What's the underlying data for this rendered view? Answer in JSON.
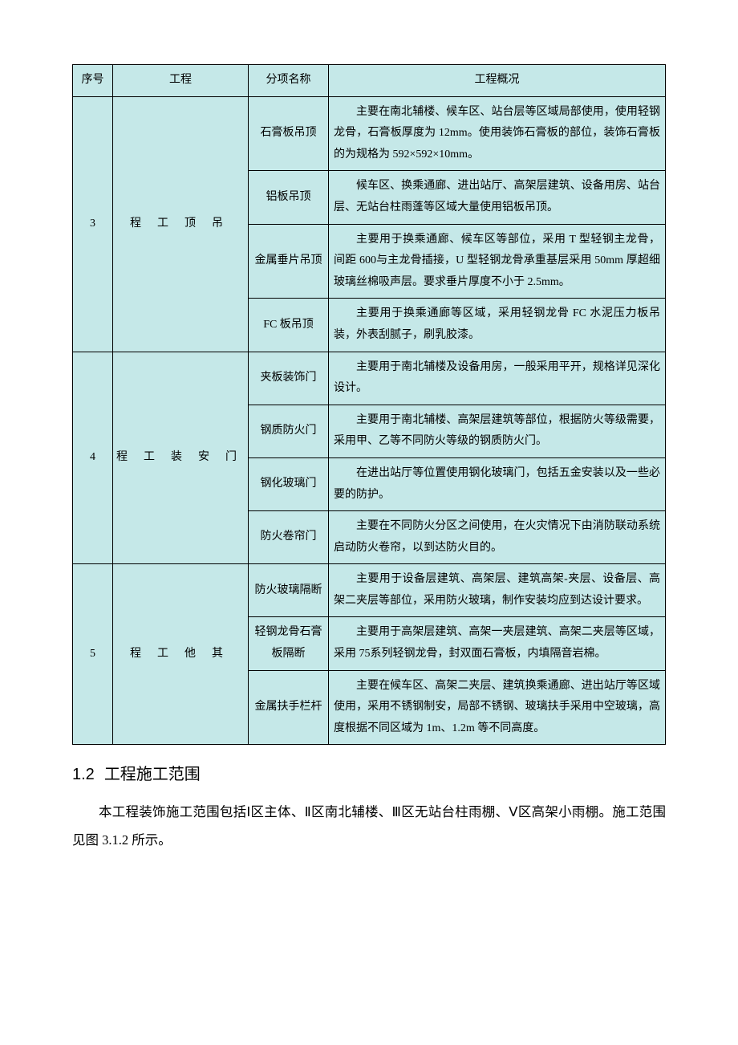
{
  "table": {
    "headers": [
      "序号",
      "工程",
      "分项名称",
      "工程概况"
    ],
    "background_color": "#c5e8e8",
    "border_color": "#000000",
    "font_size": 14,
    "rows": [
      {
        "num": "3",
        "proj": "吊顶工程",
        "items": [
          {
            "name": "石膏板吊顶",
            "desc": "主要在南北辅楼、候车区、站台层等区域局部使用，使用轻钢龙骨，石膏板厚度为 12mm。使用装饰石膏板的部位，装饰石膏板的为规格为 592×592×10mm。"
          },
          {
            "name": "铝板吊顶",
            "desc": "候车区、换乘通廊、进出站厅、高架层建筑、设备用房、站台层、无站台柱雨蓬等区域大量使用铝板吊顶。"
          },
          {
            "name": "金属垂片吊顶",
            "desc": "主要用于换乘通廊、候车区等部位，采用 T 型轻钢主龙骨，间距 600与主龙骨插接，U 型轻钢龙骨承重基层采用 50mm 厚超细玻璃丝棉吸声层。要求垂片厚度不小于 2.5mm。"
          },
          {
            "name": "FC 板吊顶",
            "desc": "主要用于换乘通廊等区域，采用轻钢龙骨 FC 水泥压力板吊装，外表刮腻子，刷乳胶漆。"
          }
        ]
      },
      {
        "num": "4",
        "proj": "门安装工程",
        "items": [
          {
            "name": "夹板装饰门",
            "desc": "主要用于南北辅楼及设备用房，一般采用平开，规格详见深化设计。"
          },
          {
            "name": "钢质防火门",
            "desc": "主要用于南北辅楼、高架层建筑等部位，根据防火等级需要，采用甲、乙等不同防火等级的钢质防火门。"
          },
          {
            "name": "钢化玻璃门",
            "desc": "在进出站厅等位置使用钢化玻璃门，包括五金安装以及一些必要的防护。"
          },
          {
            "name": "防火卷帘门",
            "desc": "主要在不同防火分区之间使用，在火灾情况下由消防联动系统启动防火卷帘，以到达防火目的。"
          }
        ]
      },
      {
        "num": "5",
        "proj": "其他工程",
        "items": [
          {
            "name": "防火玻璃隔断",
            "desc": "主要用于设备层建筑、高架层、建筑高架-夹层、设备层、高架二夹层等部位，采用防火玻璃，制作安装均应到达设计要求。"
          },
          {
            "name": "轻钢龙骨石膏板隔断",
            "desc": "主要用于高架层建筑、高架一夹层建筑、高架二夹层等区域，采用 75系列轻钢龙骨，封双面石膏板，内填隔音岩棉。"
          },
          {
            "name": "金属扶手栏杆",
            "desc": "主要在候车区、高架二夹层、建筑换乘通廊、进出站厅等区域使用，采用不锈钢制安，局部不锈钢、玻璃扶手采用中空玻璃，高度根据不同区域为 1m、1.2m 等不同高度。"
          }
        ]
      }
    ]
  },
  "section": {
    "number": "1.2",
    "title": "工程施工范围",
    "heading_font_size": 20
  },
  "paragraph": "本工程装饰施工范围包括Ⅰ区主体、Ⅱ区南北辅楼、Ⅲ区无站台柱雨棚、Ⅴ区高架小雨棚。施工范围见图 3.1.2 所示。",
  "body_font_size": 16.5
}
